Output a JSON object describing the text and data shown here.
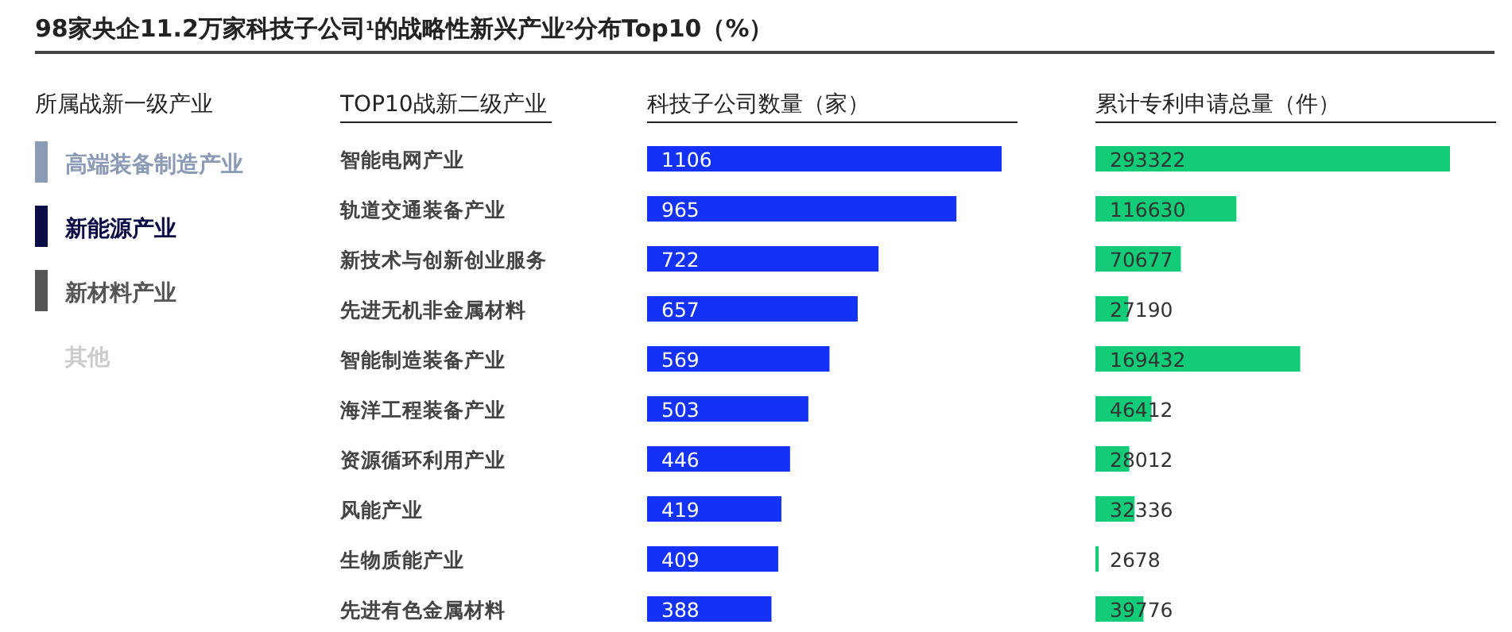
{
  "chart_data": [
    {
      "type": "other",
      "title": "98家央企11.2万家科技子公司$^{1}$的战略性新兴产业$^{2}$分布Top10（%）",
      "legend_title": "所属战新一级产业",
      "categories": [
        "高端装备制造产业",
        "新能源产业",
        "新材料产业",
        "其他"
      ],
      "colors": [
        "#8c9bb5",
        "#0b0b45",
        "#555555",
        null
      ]
    },
    {
      "type": "bar",
      "orientation": "horizontal",
      "ylabel": "TOP10战新二级产业",
      "title": "科技子公司数量（家）",
      "categories": [
        "智能电网产业",
        "轨道交通装备产业",
        "新技术与创新创业服务",
        "先进无机非金属材料",
        "智能制造装备产业",
        "海洋工程装备产业",
        "资源循环利用产业",
        "风能产业",
        "生物质能产业",
        "先进有色金属材料"
      ],
      "values": [
        1106,
        965,
        722,
        657,
        569,
        503,
        446,
        419,
        409,
        388
      ],
      "color": "#1432f5",
      "data_labels": true
    },
    {
      "type": "bar",
      "orientation": "horizontal",
      "title": "累计专利申请总量（件）",
      "values": [
        293322,
        116630,
        70677,
        27190,
        169432,
        46412,
        28012,
        32336,
        2678,
        39776
      ],
      "color": "#12cc78",
      "data_labels": true
    }
  ]
}
